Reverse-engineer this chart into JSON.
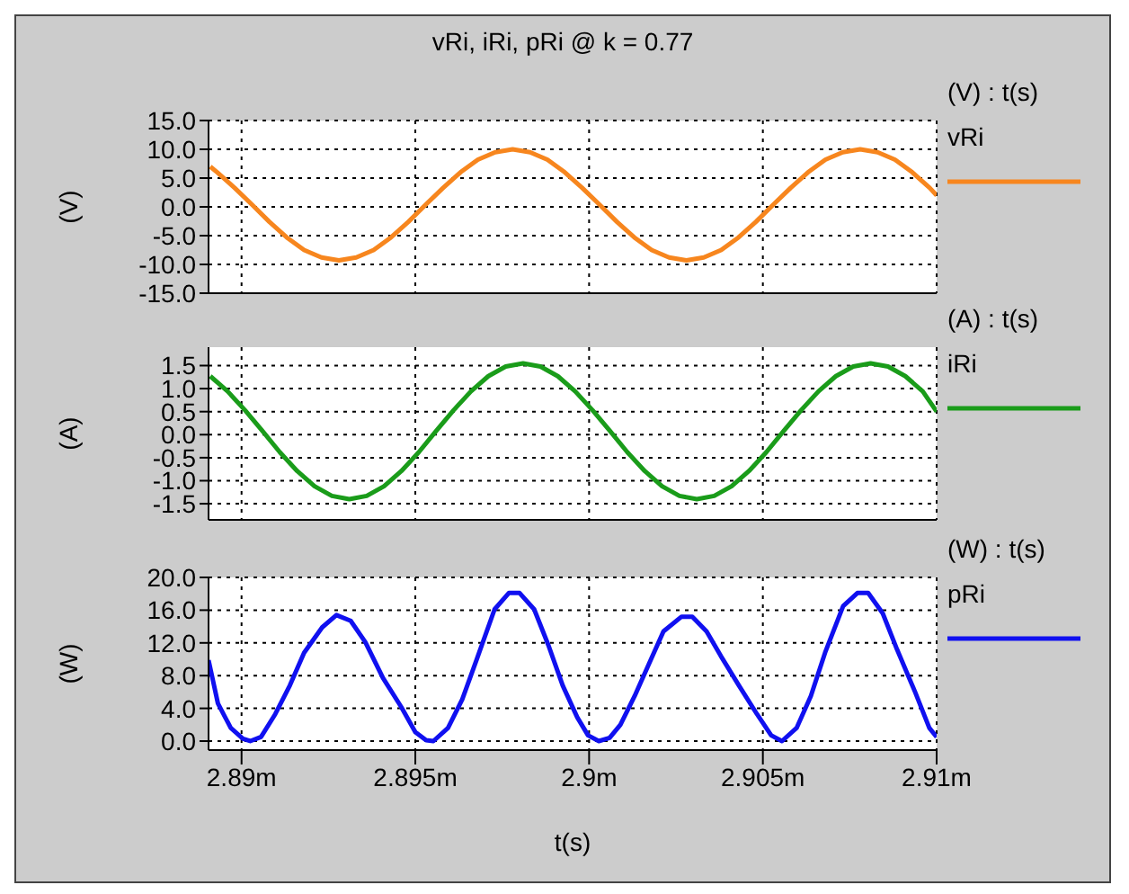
{
  "chart_data": [
    {
      "type": "line",
      "title": "vRi, iRi, pRi @ k = 0.77",
      "ylabel": "(V)",
      "legend_title": "(V) : t(s)",
      "legend": "right",
      "grid": true,
      "tick_labels": "y",
      "xlim": [
        2.88905,
        2.91
      ],
      "xticks": [
        2.89,
        2.895,
        2.9,
        2.905,
        2.91
      ],
      "ylim": [
        -15,
        15
      ],
      "yticks": [
        {
          "value": -15,
          "label": "-15.0"
        },
        {
          "value": -10,
          "label": "-10.0"
        },
        {
          "value": -5,
          "label": "-5.0"
        },
        {
          "value": 0,
          "label": "0.0"
        },
        {
          "value": 5,
          "label": "5.0"
        },
        {
          "value": 10,
          "label": "10.0"
        },
        {
          "value": 15,
          "label": "15.0"
        }
      ],
      "series": [
        {
          "name": "vRi",
          "color": "#f7861e",
          "x": [
            2.8891,
            2.8893,
            2.8898,
            2.8903,
            2.8908,
            2.8913,
            2.8918,
            2.8923,
            2.8928,
            2.8933,
            2.8938,
            2.8943,
            2.8948,
            2.8953,
            2.8958,
            2.8963,
            2.8968,
            2.8973,
            2.8978,
            2.8983,
            2.8988,
            2.8993,
            2.8998,
            2.9003,
            2.9008,
            2.9013,
            2.9018,
            2.9023,
            2.9028,
            2.9033,
            2.9038,
            2.9043,
            2.9048,
            2.9053,
            2.9058,
            2.9063,
            2.9068,
            2.9073,
            2.9078,
            2.9083,
            2.9088,
            2.9093,
            2.9098,
            2.91
          ],
          "values": [
            7.0,
            6.0,
            3.3,
            0.4,
            -2.6,
            -5.3,
            -7.5,
            -8.8,
            -9.3,
            -8.8,
            -7.5,
            -5.3,
            -2.6,
            0.4,
            3.3,
            6.0,
            8.2,
            9.5,
            10.0,
            9.5,
            8.2,
            6.0,
            3.3,
            0.4,
            -2.6,
            -5.3,
            -7.5,
            -8.8,
            -9.3,
            -8.8,
            -7.5,
            -5.3,
            -2.6,
            0.4,
            3.3,
            6.0,
            8.2,
            9.5,
            10.0,
            9.5,
            8.2,
            6.0,
            3.3,
            2.0
          ]
        }
      ]
    },
    {
      "type": "line",
      "ylabel": "(A)",
      "legend_title": "(A) : t(s)",
      "legend": "right",
      "grid": true,
      "tick_labels": "y",
      "xlim": [
        2.88905,
        2.91
      ],
      "xticks": [
        2.89,
        2.895,
        2.9,
        2.905,
        2.91
      ],
      "ylim": [
        -1.85,
        1.9
      ],
      "yticks": [
        {
          "value": -1.5,
          "label": "-1.5"
        },
        {
          "value": -1,
          "label": "-1.0"
        },
        {
          "value": -0.5,
          "label": "-0.5"
        },
        {
          "value": 0,
          "label": "0.0"
        },
        {
          "value": 0.5,
          "label": "0.5"
        },
        {
          "value": 1,
          "label": "1.0"
        },
        {
          "value": 1.5,
          "label": "1.5"
        }
      ],
      "series": [
        {
          "name": "iRi",
          "color": "#1a9c1a",
          "x": [
            2.8891,
            2.8896,
            2.8901,
            2.8906,
            2.8911,
            2.8916,
            2.8921,
            2.8926,
            2.8931,
            2.8936,
            2.8941,
            2.8946,
            2.8951,
            2.8956,
            2.8961,
            2.8966,
            2.8971,
            2.8976,
            2.8981,
            2.8986,
            2.8991,
            2.8996,
            2.9001,
            2.9006,
            2.9011,
            2.9016,
            2.9021,
            2.9026,
            2.9031,
            2.9036,
            2.9041,
            2.9046,
            2.9051,
            2.9056,
            2.9061,
            2.9066,
            2.9071,
            2.9076,
            2.9081,
            2.9086,
            2.9091,
            2.9096,
            2.91
          ],
          "values": [
            1.27,
            0.94,
            0.53,
            0.08,
            -0.38,
            -0.79,
            -1.12,
            -1.33,
            -1.4,
            -1.33,
            -1.12,
            -0.79,
            -0.38,
            0.08,
            0.53,
            0.94,
            1.27,
            1.48,
            1.55,
            1.48,
            1.27,
            0.94,
            0.53,
            0.08,
            -0.38,
            -0.79,
            -1.12,
            -1.33,
            -1.4,
            -1.33,
            -1.12,
            -0.79,
            -0.38,
            0.08,
            0.53,
            0.94,
            1.27,
            1.48,
            1.55,
            1.48,
            1.27,
            0.94,
            0.5
          ]
        }
      ]
    },
    {
      "type": "line",
      "xlabel": "t(s)",
      "ylabel": "(W)",
      "legend_title": "(W) : t(s)",
      "legend": "right",
      "grid": true,
      "xlim": [
        2.88905,
        2.91
      ],
      "xticks": [
        {
          "value": 2.89,
          "label": "2.89m"
        },
        {
          "value": 2.895,
          "label": "2.895m"
        },
        {
          "value": 2.9,
          "label": "2.9m"
        },
        {
          "value": 2.905,
          "label": "2.905m"
        },
        {
          "value": 2.91,
          "label": "2.91m"
        }
      ],
      "ylim": [
        -1.1,
        20
      ],
      "yticks": [
        {
          "value": 0,
          "label": "0.0"
        },
        {
          "value": 4,
          "label": "4.0"
        },
        {
          "value": 8,
          "label": "8.0"
        },
        {
          "value": 12,
          "label": "12.0"
        },
        {
          "value": 16,
          "label": "16.0"
        },
        {
          "value": 20,
          "label": "20.0"
        }
      ],
      "series": [
        {
          "name": "pRi",
          "color": "#1010f0",
          "x": [
            2.88905,
            2.88932,
            2.88969,
            2.89004,
            2.89025,
            2.89056,
            2.89097,
            2.89139,
            2.8918,
            2.89232,
            2.89273,
            2.89314,
            2.89356,
            2.89407,
            2.89459,
            2.895,
            2.89531,
            2.89552,
            2.89594,
            2.89635,
            2.89676,
            2.89728,
            2.89769,
            2.898,
            2.89842,
            2.89883,
            2.89924,
            2.89966,
            2.89997,
            2.90028,
            2.90059,
            2.9009,
            2.90131,
            2.90173,
            2.90214,
            2.90266,
            2.90297,
            2.90338,
            2.90379,
            2.90431,
            2.90483,
            2.90524,
            2.90555,
            2.90597,
            2.90638,
            2.90679,
            2.90731,
            2.90772,
            2.90803,
            2.90845,
            2.90886,
            2.90938,
            2.90979,
            2.91
          ],
          "values": [
            9.9,
            4.6,
            1.6,
            0.3,
            0,
            0.5,
            3.3,
            6.8,
            10.8,
            13.9,
            15.4,
            14.7,
            12.1,
            7.7,
            4.2,
            1.1,
            0.1,
            0,
            1.6,
            5.1,
            9.9,
            16.1,
            18.1,
            18.1,
            16.1,
            11.7,
            6.8,
            2.9,
            0.7,
            0,
            0.4,
            2.0,
            5.5,
            9.5,
            13.4,
            15.2,
            15.2,
            13.4,
            10.4,
            6.8,
            3.3,
            0.7,
            0,
            1.6,
            5.5,
            10.8,
            16.5,
            18.1,
            18.1,
            15.6,
            11.2,
            6.0,
            1.6,
            0.5
          ]
        }
      ]
    }
  ]
}
